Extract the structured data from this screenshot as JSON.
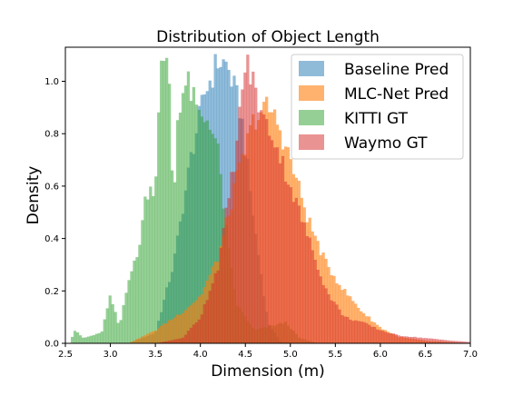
{
  "chart_data": {
    "type": "histogram",
    "title": "Distribution of Object Length",
    "xlabel": "Dimension (m)",
    "ylabel": "Density",
    "xlim": [
      2.5,
      7.0
    ],
    "ylim": [
      0.0,
      1.13
    ],
    "xticks": [
      "2.5",
      "3.0",
      "3.5",
      "4.0",
      "4.5",
      "5.0",
      "5.5",
      "6.0",
      "6.5",
      "7.0"
    ],
    "yticks": [
      "0.0",
      "0.2",
      "0.4",
      "0.6",
      "0.8",
      "1.0"
    ],
    "legend_position": "top-right",
    "grid": false,
    "bin_width": 0.03,
    "series": [
      {
        "name": "Baseline Pred",
        "color": "#1f77b4",
        "alpha": 0.5,
        "profile": [
          [
            2.5,
            0
          ],
          [
            3.2,
            0
          ],
          [
            3.5,
            0.04
          ],
          [
            3.7,
            0.3
          ],
          [
            3.9,
            0.72
          ],
          [
            4.05,
            0.96
          ],
          [
            4.2,
            1.08
          ],
          [
            4.3,
            1.06
          ],
          [
            4.45,
            0.88
          ],
          [
            4.6,
            0.45
          ],
          [
            4.75,
            0.08
          ],
          [
            4.9,
            0
          ],
          [
            7.0,
            0
          ]
        ]
      },
      {
        "name": "MLC-Net Pred",
        "color": "#ff7f0e",
        "alpha": 0.6,
        "profile": [
          [
            2.5,
            0
          ],
          [
            3.2,
            0
          ],
          [
            3.5,
            0.05
          ],
          [
            3.8,
            0.12
          ],
          [
            4.0,
            0.18
          ],
          [
            4.2,
            0.33
          ],
          [
            4.4,
            0.62
          ],
          [
            4.6,
            0.86
          ],
          [
            4.75,
            0.9
          ],
          [
            4.85,
            0.85
          ],
          [
            5.0,
            0.7
          ],
          [
            5.2,
            0.47
          ],
          [
            5.4,
            0.3
          ],
          [
            5.6,
            0.2
          ],
          [
            5.8,
            0.12
          ],
          [
            6.0,
            0.06
          ],
          [
            6.2,
            0.025
          ],
          [
            6.5,
            0.01
          ],
          [
            7.0,
            0
          ]
        ]
      },
      {
        "name": "KITTI GT",
        "color": "#2ca02c",
        "alpha": 0.5,
        "profile": [
          [
            2.5,
            0
          ],
          [
            2.55,
            0
          ],
          [
            2.6,
            0.05
          ],
          [
            2.7,
            0.02
          ],
          [
            2.9,
            0.04
          ],
          [
            3.0,
            0.18
          ],
          [
            3.1,
            0.06
          ],
          [
            3.2,
            0.25
          ],
          [
            3.3,
            0.33
          ],
          [
            3.4,
            0.58
          ],
          [
            3.5,
            0.6
          ],
          [
            3.55,
            1.05
          ],
          [
            3.65,
            1.05
          ],
          [
            3.7,
            0.5
          ],
          [
            3.75,
            0.9
          ],
          [
            3.85,
            1.0
          ],
          [
            4.0,
            0.85
          ],
          [
            4.1,
            0.86
          ],
          [
            4.2,
            0.72
          ],
          [
            4.3,
            0.38
          ],
          [
            4.4,
            0.15
          ],
          [
            4.6,
            0.05
          ],
          [
            4.95,
            0.08
          ],
          [
            5.1,
            0.02
          ],
          [
            5.3,
            0
          ],
          [
            7.0,
            0
          ]
        ]
      },
      {
        "name": "Waymo GT",
        "color": "#d62728",
        "alpha": 0.5,
        "profile": [
          [
            2.5,
            0
          ],
          [
            3.5,
            0
          ],
          [
            3.8,
            0.02
          ],
          [
            4.0,
            0.1
          ],
          [
            4.2,
            0.3
          ],
          [
            4.4,
            0.75
          ],
          [
            4.5,
            1.08
          ],
          [
            4.6,
            0.98
          ],
          [
            4.7,
            0.85
          ],
          [
            4.8,
            0.8
          ],
          [
            5.0,
            0.6
          ],
          [
            5.2,
            0.4
          ],
          [
            5.4,
            0.2
          ],
          [
            5.6,
            0.1
          ],
          [
            5.8,
            0.08
          ],
          [
            6.0,
            0.05
          ],
          [
            6.2,
            0.03
          ],
          [
            6.5,
            0.02
          ],
          [
            6.8,
            0.01
          ],
          [
            7.0,
            0.005
          ]
        ]
      }
    ]
  }
}
